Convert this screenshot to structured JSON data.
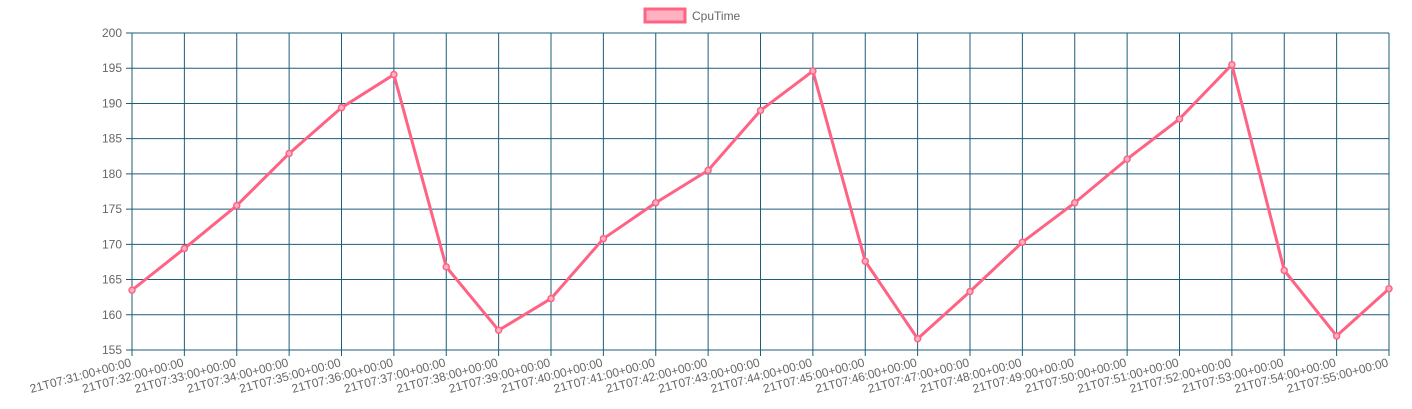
{
  "chart_data": {
    "type": "line",
    "title": "",
    "xlabel": "",
    "ylabel": "",
    "ylim": [
      155,
      200
    ],
    "y_step": 5,
    "grid": true,
    "legend_position": "top",
    "x_label_prefix_hidden": true,
    "x": [
      "2021-07-21T07:31:00+00:00",
      "2021-07-21T07:32:00+00:00",
      "2021-07-21T07:33:00+00:00",
      "2021-07-21T07:34:00+00:00",
      "2021-07-21T07:35:00+00:00",
      "2021-07-21T07:36:00+00:00",
      "2021-07-21T07:37:00+00:00",
      "2021-07-21T07:38:00+00:00",
      "2021-07-21T07:39:00+00:00",
      "2021-07-21T07:40:00+00:00",
      "2021-07-21T07:41:00+00:00",
      "2021-07-21T07:42:00+00:00",
      "2021-07-21T07:43:00+00:00",
      "2021-07-21T07:44:00+00:00",
      "2021-07-21T07:45:00+00:00",
      "2021-07-21T07:46:00+00:00",
      "2021-07-21T07:47:00+00:00",
      "2021-07-21T07:48:00+00:00",
      "2021-07-21T07:49:00+00:00",
      "2021-07-21T07:50:00+00:00",
      "2021-07-21T07:51:00+00:00",
      "2021-07-21T07:52:00+00:00",
      "2021-07-21T07:53:00+00:00",
      "2021-07-21T07:54:00+00:00",
      "2021-07-21T07:55:00+00:00"
    ],
    "x_tick_labels": [
      "21T07:31:00+00:00",
      "21T07:32:00+00:00",
      "21T07:33:00+00:00",
      "21T07:34:00+00:00",
      "21T07:35:00+00:00",
      "21T07:36:00+00:00",
      "21T07:37:00+00:00",
      "21T07:38:00+00:00",
      "21T07:39:00+00:00",
      "21T07:40:00+00:00",
      "21T07:41:00+00:00",
      "21T07:42:00+00:00",
      "21T07:43:00+00:00",
      "21T07:44:00+00:00",
      "21T07:45:00+00:00",
      "21T07:46:00+00:00",
      "21T07:47:00+00:00",
      "21T07:48:00+00:00",
      "21T07:49:00+00:00",
      "21T07:50:00+00:00",
      "21T07:51:00+00:00",
      "21T07:52:00+00:00",
      "21T07:53:00+00:00",
      "21T07:54:00+00:00",
      "21T07:55:00+00:00"
    ],
    "series": [
      {
        "name": "CpuTime",
        "color": "#ff6384",
        "fill_color": "#ffb1c1",
        "values": [
          163.5,
          169.4,
          175.5,
          182.9,
          189.4,
          194.1,
          166.8,
          157.8,
          162.3,
          170.8,
          175.9,
          180.5,
          189.0,
          194.6,
          167.6,
          156.6,
          163.3,
          170.3,
          175.9,
          182.1,
          187.8,
          195.5,
          166.3,
          157.0,
          163.7
        ]
      }
    ]
  },
  "colors": {
    "grid": "#1d5c7a",
    "tick_text": "#666666",
    "background": "#ffffff"
  }
}
